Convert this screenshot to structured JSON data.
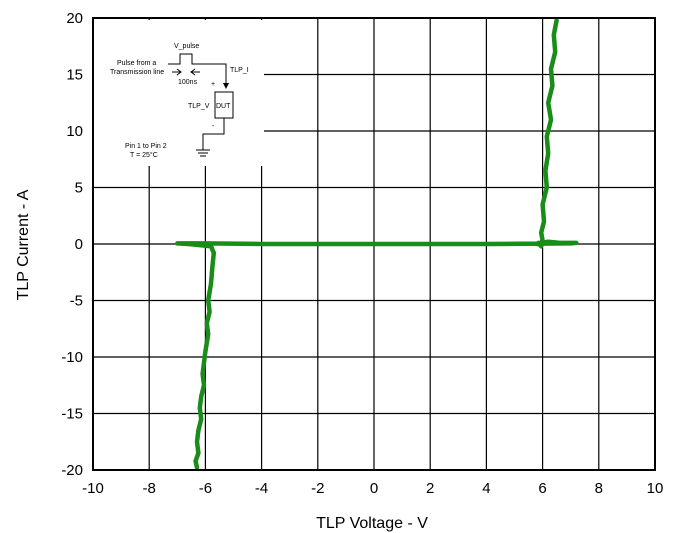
{
  "chart_data": {
    "type": "line",
    "xlabel": "TLP Voltage - V",
    "ylabel": "TLP Current - A",
    "xlim": [
      -10,
      10
    ],
    "ylim": [
      -20,
      20
    ],
    "xticks": [
      -10,
      -8,
      -6,
      -4,
      -2,
      0,
      2,
      4,
      6,
      8,
      10
    ],
    "yticks": [
      -20,
      -15,
      -10,
      -5,
      0,
      5,
      10,
      15,
      20
    ],
    "grid": true,
    "series_color": "#1a8c1a",
    "series": [
      {
        "x": [
          6.5,
          6.4,
          6.45,
          6.3,
          6.35,
          6.2,
          6.3,
          6.15,
          6.2,
          6.1,
          6.15,
          6.0,
          6.05,
          5.95,
          6.0,
          5.9,
          5.95,
          5.85,
          5.9,
          5.8,
          6.2,
          6.6,
          7.2,
          7.0,
          4.0,
          0.0,
          -4.0,
          -6.0,
          -7.0,
          -6.6,
          -5.8,
          -5.7,
          -5.75,
          -5.8,
          -5.9,
          -5.85,
          -5.95,
          -5.9,
          -6.0,
          -6.05,
          -6.1,
          -6.05,
          -6.15,
          -6.2,
          -6.15,
          -6.25,
          -6.3,
          -6.25,
          -6.35,
          -6.3
        ],
        "y": [
          19.8,
          18.5,
          17.0,
          15.5,
          14.0,
          12.5,
          11.0,
          9.5,
          8.0,
          6.5,
          5.0,
          3.5,
          2.0,
          1.0,
          0.3,
          0.0,
          -0.2,
          0.1,
          0.0,
          0.0,
          0.2,
          0.1,
          0.1,
          0.05,
          0.0,
          0.0,
          0.0,
          0.05,
          0.05,
          0.0,
          -0.2,
          -0.8,
          -2.0,
          -3.5,
          -5.0,
          -6.0,
          -7.0,
          -8.0,
          -9.5,
          -10.5,
          -11.5,
          -12.5,
          -13.5,
          -14.5,
          -15.5,
          -16.5,
          -17.5,
          -18.5,
          -19.2,
          -19.8
        ]
      }
    ]
  },
  "inset": {
    "v_pulse": "V_pulse",
    "pulse_from": "Pulse from a",
    "transmission_line": "Transmission line",
    "pulse_width": "100ns",
    "plus": "+",
    "minus": "-",
    "tlp_i": "TLP_I",
    "tlp_v": "TLP_V",
    "dut": "DUT",
    "pin_note": "Pin 1 to Pin 2",
    "temp_note": "T = 25°C"
  }
}
